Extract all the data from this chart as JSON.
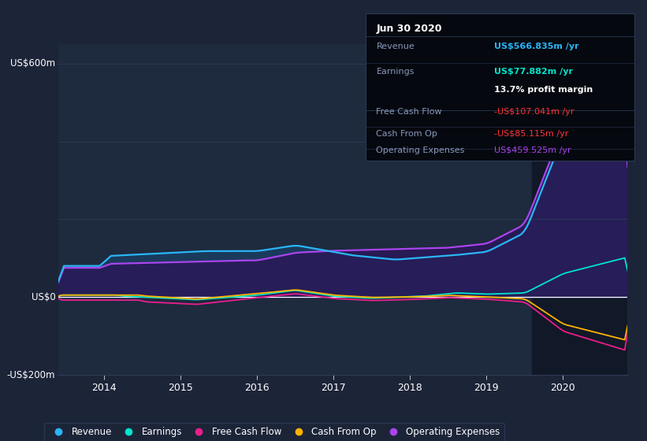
{
  "bg_color": "#1c2438",
  "plot_bg_color": "#1e2a3e",
  "dark_bg_color": "#141c2e",
  "grid_color": "#2e3d55",
  "text_color": "#ffffff",
  "dim_text_color": "#8899bb",
  "white_line_color": "#ffffff",
  "ylim": [
    -200,
    650
  ],
  "xlabel_years": [
    2014,
    2015,
    2016,
    2017,
    2018,
    2019,
    2020
  ],
  "xlim_start": 2013.4,
  "xlim_end": 2020.85,
  "highlight_x_start": 2019.6,
  "highlight_color": "#111827",
  "revenue_color": "#29b6f6",
  "earnings_color": "#00e5cc",
  "fcf_color": "#e91e8c",
  "cashfromop_color": "#ffb300",
  "opex_color": "#aa44ee",
  "revenue_fill": "#1a3a5c",
  "opex_fill": "#2a1858",
  "info_box": {
    "title": "Jun 30 2020",
    "title_color": "#ffffff",
    "border_color": "#2a3a55",
    "bg_color": "#05080f",
    "rows": [
      {
        "label": "Revenue",
        "value": "US$566.835m /yr",
        "value_color": "#29b6f6",
        "bold_value": true,
        "sub": null
      },
      {
        "label": "Earnings",
        "value": "US$77.882m /yr",
        "value_color": "#00e5cc",
        "bold_value": true,
        "sub": "13.7% profit margin"
      },
      {
        "label": "Free Cash Flow",
        "value": "-US$107.041m /yr",
        "value_color": "#ff3333",
        "bold_value": false,
        "sub": null
      },
      {
        "label": "Cash From Op",
        "value": "-US$85.115m /yr",
        "value_color": "#ff3333",
        "bold_value": false,
        "sub": null
      },
      {
        "label": "Operating Expenses",
        "value": "US$459.525m /yr",
        "value_color": "#aa44ee",
        "bold_value": false,
        "sub": null
      }
    ]
  },
  "legend_items": [
    {
      "label": "Revenue",
      "color": "#29b6f6"
    },
    {
      "label": "Earnings",
      "color": "#00e5cc"
    },
    {
      "label": "Free Cash Flow",
      "color": "#e91e8c"
    },
    {
      "label": "Cash From Op",
      "color": "#ffb300"
    },
    {
      "label": "Operating Expenses",
      "color": "#aa44ee"
    }
  ]
}
